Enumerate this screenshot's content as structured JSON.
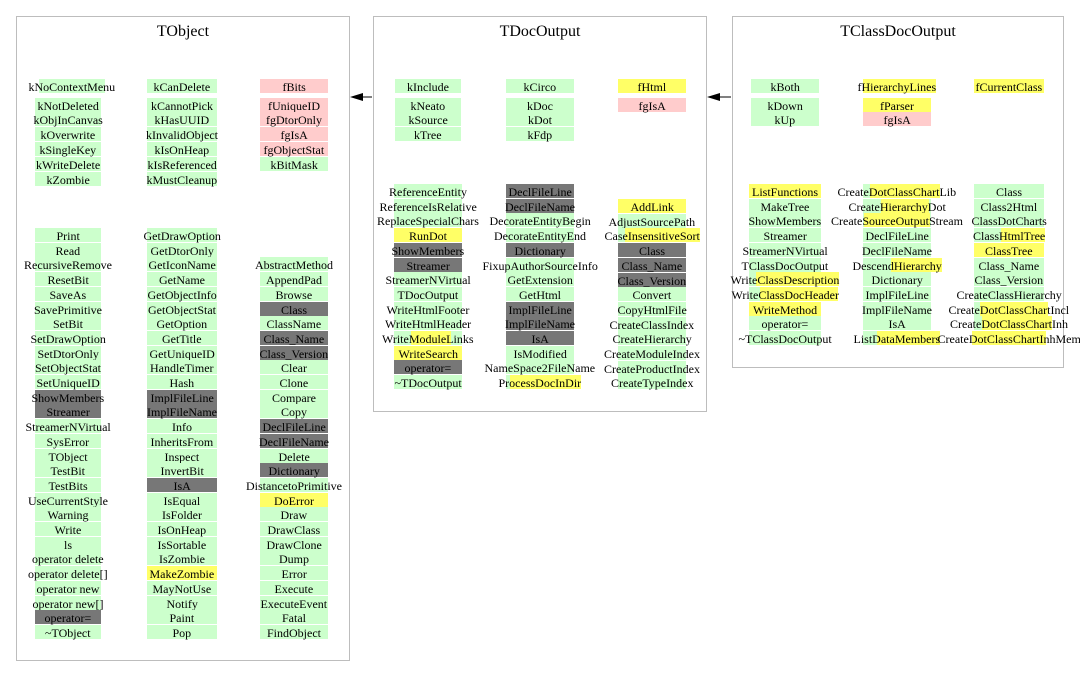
{
  "colors": {
    "public": "#ccffcc",
    "private": "#ffcccc",
    "overridden": "#777777",
    "highlight": "#ffff66",
    "border": "#bdbdbd"
  },
  "classes": [
    {
      "name": "TObject",
      "data_cols": [
        [
          {
            "t": "kNoContextMenu",
            "h": [
              [
                0,
                1,
                "-"
              ],
              [
                1,
                14,
                "g"
              ]
            ]
          },
          {
            "t": "kNotDeleted",
            "c": "g"
          },
          {
            "t": "kObjInCanvas",
            "c": "g"
          },
          {
            "t": "kOverwrite",
            "c": "g"
          },
          {
            "t": "kSingleKey",
            "c": "g"
          },
          {
            "t": "kWriteDelete",
            "c": "g"
          },
          {
            "t": "kZombie",
            "c": "g"
          }
        ],
        [
          {
            "t": "kCanDelete",
            "c": "g"
          },
          {
            "t": "kCannotPick",
            "c": "g"
          },
          {
            "t": "kHasUUID",
            "c": "g"
          },
          {
            "t": "kInvalidObject",
            "c": "g"
          },
          {
            "t": "kIsOnHeap",
            "c": "g"
          },
          {
            "t": "kIsReferenced",
            "c": "g"
          },
          {
            "t": "kMustCleanup",
            "c": "g"
          }
        ],
        [
          {
            "t": "fBits",
            "c": "p"
          },
          {
            "t": "fUniqueID",
            "c": "p"
          },
          {
            "t": "fgDtorOnly",
            "c": "p"
          },
          {
            "t": "fgIsA",
            "c": "p"
          },
          {
            "t": "fgObjectStat",
            "c": "p"
          },
          {
            "t": "kBitMask",
            "c": "g"
          }
        ]
      ],
      "method_cols": [
        [
          {
            "t": "Print",
            "c": "g"
          },
          {
            "t": "Read",
            "c": "g"
          },
          {
            "t": "RecursiveRemove",
            "c": "g"
          },
          {
            "t": "ResetBit",
            "c": "g"
          },
          {
            "t": "SaveAs",
            "c": "g"
          },
          {
            "t": "SavePrimitive",
            "c": "g"
          },
          {
            "t": "SetBit",
            "c": "g"
          },
          {
            "t": "SetDrawOption",
            "c": "g"
          },
          {
            "t": "SetDtorOnly",
            "c": "g"
          },
          {
            "t": "SetObjectStat",
            "c": "g"
          },
          {
            "t": "SetUniqueID",
            "c": "g"
          },
          {
            "t": "ShowMembers",
            "c": "d"
          },
          {
            "t": "Streamer",
            "c": "d"
          },
          {
            "t": "StreamerNVirtual",
            "c": "g"
          },
          {
            "t": "SysError",
            "c": "g"
          },
          {
            "t": "TObject",
            "c": "g"
          },
          {
            "t": "TestBit",
            "c": "g"
          },
          {
            "t": "TestBits",
            "c": "g"
          },
          {
            "t": "UseCurrentStyle",
            "c": "g"
          },
          {
            "t": "Warning",
            "c": "g"
          },
          {
            "t": "Write",
            "c": "g"
          },
          {
            "t": "ls",
            "c": "g"
          },
          {
            "t": "operator delete",
            "c": "g"
          },
          {
            "t": "operator delete[]",
            "c": "g"
          },
          {
            "t": "operator new",
            "c": "g"
          },
          {
            "t": "operator new[]",
            "c": "g"
          },
          {
            "t": "operator=",
            "c": "d"
          },
          {
            "t": "~TObject",
            "c": "g"
          }
        ],
        [
          {
            "t": "GetDrawOption",
            "c": "g"
          },
          {
            "t": "GetDtorOnly",
            "c": "g"
          },
          {
            "t": "GetIconName",
            "c": "g"
          },
          {
            "t": "GetName",
            "c": "g"
          },
          {
            "t": "GetObjectInfo",
            "c": "g"
          },
          {
            "t": "GetObjectStat",
            "c": "g"
          },
          {
            "t": "GetOption",
            "c": "g"
          },
          {
            "t": "GetTitle",
            "c": "g"
          },
          {
            "t": "GetUniqueID",
            "c": "g"
          },
          {
            "t": "HandleTimer",
            "c": "g"
          },
          {
            "t": "Hash",
            "c": "g"
          },
          {
            "t": "ImplFileLine",
            "c": "d"
          },
          {
            "t": "ImplFileName",
            "c": "d"
          },
          {
            "t": "Info",
            "c": "g"
          },
          {
            "t": "InheritsFrom",
            "c": "g"
          },
          {
            "t": "Inspect",
            "c": "g"
          },
          {
            "t": "InvertBit",
            "c": "g"
          },
          {
            "t": "IsA",
            "c": "d"
          },
          {
            "t": "IsEqual",
            "c": "g"
          },
          {
            "t": "IsFolder",
            "c": "g"
          },
          {
            "t": "IsOnHeap",
            "c": "g"
          },
          {
            "t": "IsSortable",
            "c": "g"
          },
          {
            "t": "IsZombie",
            "c": "g"
          },
          {
            "t": "MakeZombie",
            "c": "y"
          },
          {
            "t": "MayNotUse",
            "c": "g"
          },
          {
            "t": "Notify",
            "c": "g"
          },
          {
            "t": "Paint",
            "c": "g"
          },
          {
            "t": "Pop",
            "c": "g"
          }
        ],
        [
          {
            "t": "",
            "c": ""
          },
          {
            "t": "",
            "c": ""
          },
          {
            "t": "AbstractMethod",
            "c": "g"
          },
          {
            "t": "AppendPad",
            "c": "g"
          },
          {
            "t": "Browse",
            "c": "g"
          },
          {
            "t": "Class",
            "c": "d"
          },
          {
            "t": "ClassName",
            "c": "g"
          },
          {
            "t": "Class_Name",
            "c": "d"
          },
          {
            "t": "Class_Version",
            "c": "d"
          },
          {
            "t": "Clear",
            "c": "g"
          },
          {
            "t": "Clone",
            "c": "g"
          },
          {
            "t": "Compare",
            "c": "g"
          },
          {
            "t": "Copy",
            "c": "g"
          },
          {
            "t": "DeclFileLine",
            "c": "d"
          },
          {
            "t": "DeclFileName",
            "c": "d"
          },
          {
            "t": "Delete",
            "c": "g"
          },
          {
            "t": "Dictionary",
            "c": "d"
          },
          {
            "t": "DistancetoPrimitive",
            "c": "g"
          },
          {
            "t": "DoError",
            "c": "y"
          },
          {
            "t": "Draw",
            "c": "g"
          },
          {
            "t": "DrawClass",
            "c": "g"
          },
          {
            "t": "DrawClone",
            "c": "g"
          },
          {
            "t": "Dump",
            "c": "g"
          },
          {
            "t": "Error",
            "c": "g"
          },
          {
            "t": "Execute",
            "c": "g"
          },
          {
            "t": "ExecuteEvent",
            "c": "g"
          },
          {
            "t": "Fatal",
            "c": "g"
          },
          {
            "t": "FindObject",
            "c": "g"
          }
        ]
      ]
    },
    {
      "name": "TDocOutput",
      "data_cols": [
        [
          {
            "t": "kInclude",
            "c": "g"
          },
          {
            "t": "kNeato",
            "c": "g"
          },
          {
            "t": "kSource",
            "c": "g"
          },
          {
            "t": "kTree",
            "c": "g"
          }
        ],
        [
          {
            "t": "kCirco",
            "c": "g"
          },
          {
            "t": "kDoc",
            "c": "g"
          },
          {
            "t": "kDot",
            "c": "g"
          },
          {
            "t": "kFdp",
            "c": "g"
          }
        ],
        [
          {
            "t": "fHtml",
            "c": "y"
          },
          {
            "t": "fgIsA",
            "c": "p"
          }
        ]
      ],
      "method_cols": [
        [
          {
            "t": "ReferenceEntity",
            "c": "g"
          },
          {
            "t": "ReferenceIsRelative",
            "c": "g"
          },
          {
            "t": "ReplaceSpecialChars",
            "c": "g"
          },
          {
            "t": "RunDot",
            "c": "y"
          },
          {
            "t": "ShowMembers",
            "c": "d"
          },
          {
            "t": "Streamer",
            "c": "d"
          },
          {
            "t": "StreamerNVirtual",
            "c": "g"
          },
          {
            "t": "TDocOutput",
            "c": "g"
          },
          {
            "t": "WriteHtmlFooter",
            "c": "g"
          },
          {
            "t": "WriteHtmlHeader",
            "c": "g"
          },
          {
            "t": "WriteModuleLinks",
            "c": "g",
            "y": [
              5,
              12
            ]
          },
          {
            "t": "WriteSearch",
            "c": "y"
          },
          {
            "t": "operator=",
            "c": "d"
          },
          {
            "t": "~TDocOutput",
            "c": "g"
          }
        ],
        [
          {
            "t": "DeclFileLine",
            "c": "d"
          },
          {
            "t": "DeclFileName",
            "c": "d"
          },
          {
            "t": "DecorateEntityBegin",
            "c": "g"
          },
          {
            "t": "DecorateEntityEnd",
            "c": "g"
          },
          {
            "t": "Dictionary",
            "c": "d"
          },
          {
            "t": "FixupAuthorSourceInfo",
            "c": "g"
          },
          {
            "t": "GetExtension",
            "c": "g"
          },
          {
            "t": "GetHtml",
            "c": "g"
          },
          {
            "t": "ImplFileLine",
            "c": "d"
          },
          {
            "t": "ImplFileName",
            "c": "d"
          },
          {
            "t": "IsA",
            "c": "d"
          },
          {
            "t": "IsModified",
            "c": "g"
          },
          {
            "t": "NameSpace2FileName",
            "c": "g"
          },
          {
            "t": "ProcessDocInDir",
            "c": "g",
            "y": [
              2,
              15
            ]
          }
        ],
        [
          {
            "t": "AddLink",
            "c": "y"
          },
          {
            "t": "AdjustSourcePath",
            "c": "g"
          },
          {
            "t": "CaseInsensitiveSort",
            "c": "g",
            "y": [
              4,
              19
            ]
          },
          {
            "t": "Class",
            "c": "d"
          },
          {
            "t": "Class_Name",
            "c": "d"
          },
          {
            "t": "Class_Version",
            "c": "d"
          },
          {
            "t": "Convert",
            "c": "g"
          },
          {
            "t": "CopyHtmlFile",
            "c": "g"
          },
          {
            "t": "CreateClassIndex",
            "c": "g"
          },
          {
            "t": "CreateHierarchy",
            "c": "g"
          },
          {
            "t": "CreateModuleIndex",
            "c": "g"
          },
          {
            "t": "CreateProductIndex",
            "c": "g"
          },
          {
            "t": "CreateTypeIndex",
            "c": "g"
          }
        ]
      ]
    },
    {
      "name": "TClassDocOutput",
      "data_cols": [
        [
          {
            "t": "kBoth",
            "c": "g"
          },
          {
            "t": "kDown",
            "c": "g"
          },
          {
            "t": "kUp",
            "c": "g"
          }
        ],
        [
          {
            "t": "fHierarchyLines",
            "c": "g",
            "y": [
              1,
              15
            ]
          },
          {
            "t": "fParser",
            "c": "y"
          },
          {
            "t": "fgIsA",
            "c": "p"
          }
        ],
        [
          {
            "t": "fCurrentClass",
            "c": "y",
            "y": [
              1,
              13
            ]
          }
        ]
      ],
      "method_cols": [
        [
          {
            "t": "ListFunctions",
            "c": "y"
          },
          {
            "t": "MakeTree",
            "c": "g"
          },
          {
            "t": "ShowMembers",
            "c": "g"
          },
          {
            "t": "Streamer",
            "c": "g"
          },
          {
            "t": "StreamerNVirtual",
            "c": "g"
          },
          {
            "t": "TClassDocOutput",
            "c": "g"
          },
          {
            "t": "WriteClassDescription",
            "c": "g",
            "y": [
              5,
              21
            ]
          },
          {
            "t": "WriteClassDocHeader",
            "c": "g",
            "y": [
              5,
              19
            ]
          },
          {
            "t": "WriteMethod",
            "c": "y"
          },
          {
            "t": "operator=",
            "c": "g"
          },
          {
            "t": "~TClassDocOutput",
            "c": "g"
          }
        ],
        [
          {
            "t": "CreateDotClassChartLib",
            "c": "g",
            "y": [
              6,
              19
            ]
          },
          {
            "t": "CreateHierarchyDot",
            "c": "g",
            "y": [
              6,
              15
            ]
          },
          {
            "t": "CreateSourceOutputStream",
            "c": "g",
            "y": [
              6,
              18
            ]
          },
          {
            "t": "DeclFileLine",
            "c": "g"
          },
          {
            "t": "DeclFileName",
            "c": "g"
          },
          {
            "t": "DescendHierarchy",
            "c": "g",
            "y": [
              7,
              16
            ]
          },
          {
            "t": "Dictionary",
            "c": "g"
          },
          {
            "t": "ImplFileLine",
            "c": "g"
          },
          {
            "t": "ImplFileName",
            "c": "g"
          },
          {
            "t": "IsA",
            "c": "g"
          },
          {
            "t": "ListDataMembers",
            "c": "g",
            "y": [
              4,
              15
            ]
          }
        ],
        [
          {
            "t": "Class",
            "c": "g"
          },
          {
            "t": "Class2Html",
            "c": "g"
          },
          {
            "t": "ClassDotCharts",
            "c": "g"
          },
          {
            "t": "ClassHtmlTree",
            "c": "g",
            "y": [
              5,
              13
            ]
          },
          {
            "t": "ClassTree",
            "c": "y"
          },
          {
            "t": "Class_Name",
            "c": "g"
          },
          {
            "t": "Class_Version",
            "c": "g"
          },
          {
            "t": "CreateClassHierarchy",
            "c": "g"
          },
          {
            "t": "CreateDotClassChartIncl",
            "c": "g",
            "y": [
              6,
              19
            ]
          },
          {
            "t": "CreateDotClassChartInh",
            "c": "g",
            "y": [
              6,
              19
            ]
          },
          {
            "t": "CreateDotClassChartInhMem",
            "c": "g",
            "y": [
              6,
              19
            ]
          }
        ]
      ]
    }
  ]
}
